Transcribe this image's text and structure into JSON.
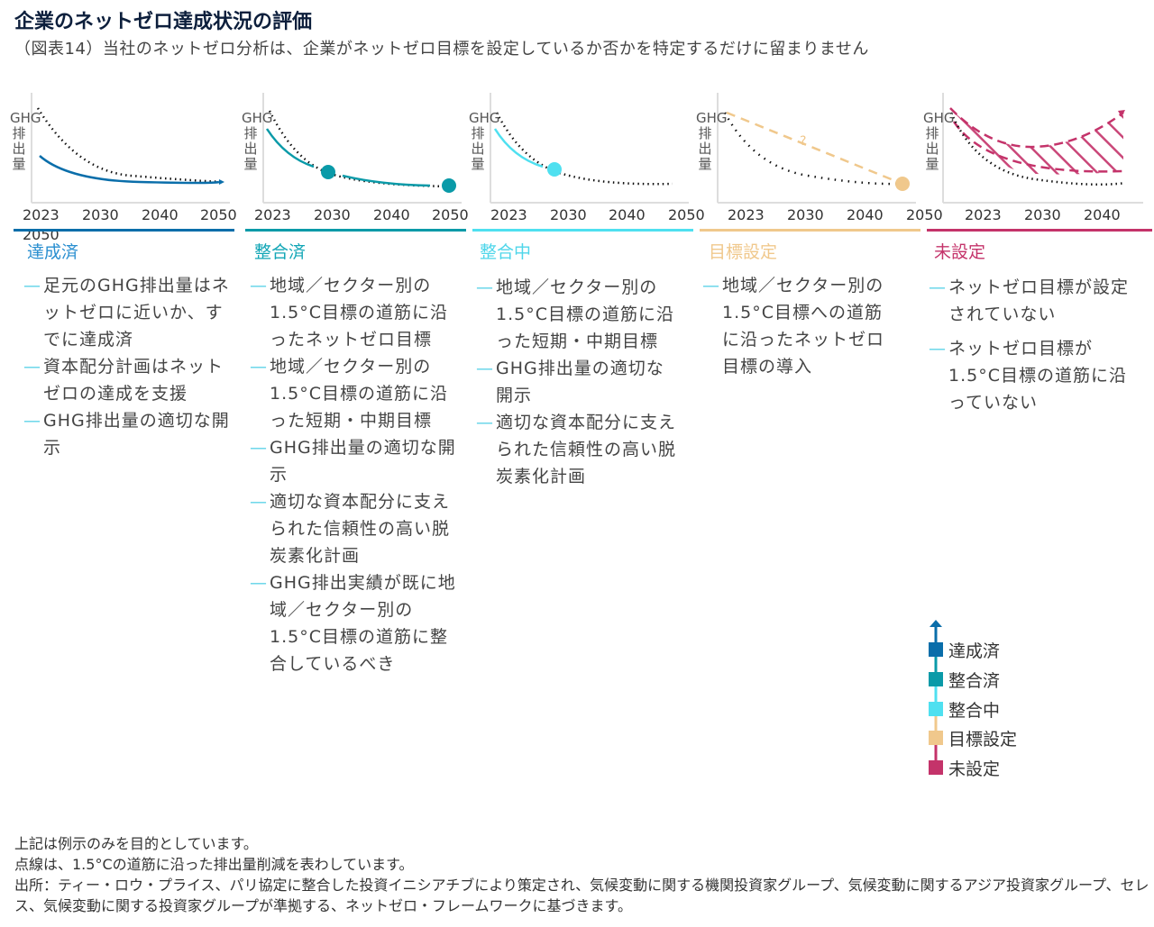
{
  "title": "企業のネットゼロ達成状況の評価",
  "subtitle": "（図表14）当社のネットゼロ分析は、企業がネットゼロ目標を設定しているか否かを特定するだけに留まりません",
  "y_axis_label": "GHG排出量",
  "panels": [
    {
      "label": "達成済",
      "color": "#0a6eaa",
      "ticks": [
        "2023",
        "2030",
        "2040",
        "2050"
      ],
      "extra_tick": "2050",
      "bullets": [
        "足元のGHG排出量はネットゼロに近いか、すでに達成済",
        "資本配分計画はネットゼロの達成を支援",
        "GHG排出量の適切な開示"
      ]
    },
    {
      "label": "整合済",
      "color": "#0a9aa8",
      "ticks": [
        "2023",
        "2030",
        "2040",
        "2050"
      ],
      "bullets": [
        "地域／セクター別の1.5°C目標の道筋に沿ったネットゼロ目標",
        "地域／セクター別の1.5°C目標の道筋に沿った短期・中期目標",
        "GHG排出量の適切な開示",
        "適切な資本配分に支えられた信頼性の高い脱炭素化計画",
        "GHG排出実績が既に地域／セクター別の1.5°C目標の道筋に整合しているべき"
      ]
    },
    {
      "label": "整合中",
      "color": "#4fe0f0",
      "ticks": [
        "2023",
        "2030",
        "2040",
        "2050"
      ],
      "bullets": [
        "地域／セクター別の1.5°C目標の道筋に沿った短期・中期目標",
        "GHG排出量の適切な開示",
        "適切な資本配分に支えられた信頼性の高い脱炭素化計画"
      ]
    },
    {
      "label": "目標設定",
      "color": "#f0c88c",
      "ticks": [
        "2023",
        "2030",
        "2040",
        "2050"
      ],
      "question": "?",
      "bullets": [
        "地域／セクター別の1.5°C目標への道筋に沿ったネットゼロ目標の導入"
      ]
    },
    {
      "label": "未設定",
      "color": "#c4336a",
      "ticks": [
        "2023",
        "2030",
        "2040"
      ],
      "bullets": [
        "ネットゼロ目標が設定されていない",
        "ネットゼロ目標が1.5°C目標の道筋に沿っていない"
      ]
    }
  ],
  "legend": [
    "達成済",
    "整合済",
    "整合中",
    "目標設定",
    "未設定"
  ],
  "footer": [
    "上記は例示のみを目的としています。",
    "点線は、1.5°Cの道筋に沿った排出量削減を表わしています。",
    "出所：ティー・ロウ・プライス、パリ協定に整合した投資イニシアチブにより策定され、気候変動に関する機関投資家グループ、気候変動に関するアジア投資家グループ、セレス、気候変動に関する投資家グループが準拠する、ネットゼロ・フレームワークに基づきます。"
  ]
}
